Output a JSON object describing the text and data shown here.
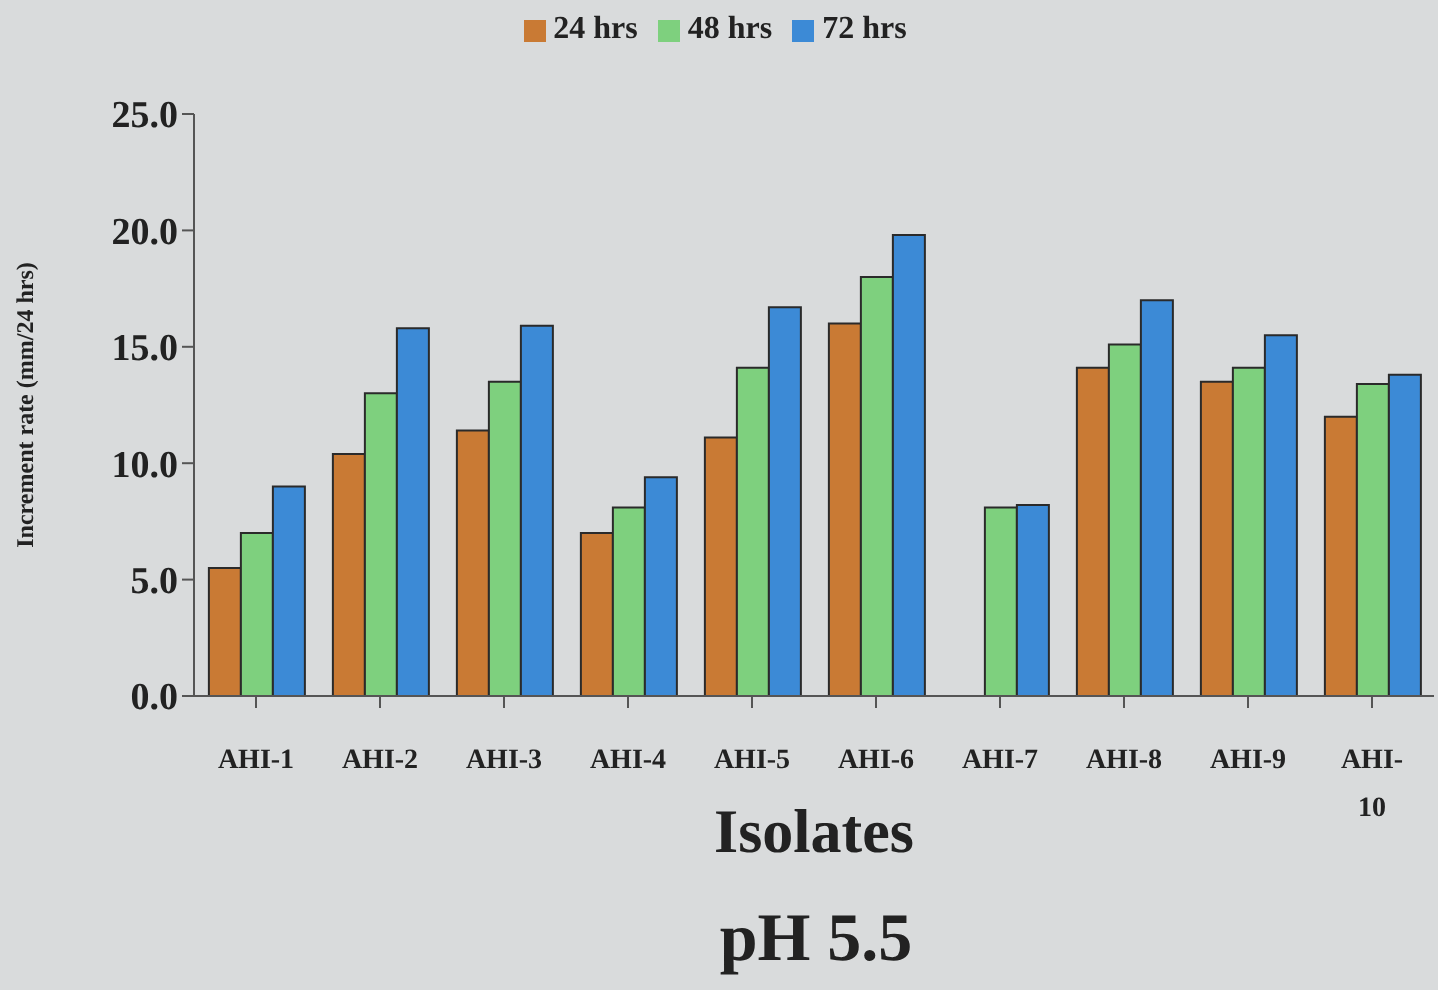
{
  "chart_data": {
    "type": "bar",
    "title": "pH 5.5",
    "xlabel": "Isolates",
    "ylabel": "Increment rate (mm/24 hrs)",
    "categories": [
      "AHI-1",
      "AHI-2",
      "AHI-3",
      "AHI-4",
      "AHI-5",
      "AHI-6",
      "AHI-7",
      "AHI-8",
      "AHI-9",
      "AHI-10"
    ],
    "series": [
      {
        "name": "24 hrs",
        "color": "#c97a34",
        "values": [
          5.5,
          10.4,
          11.4,
          7.0,
          11.1,
          16.0,
          null,
          14.1,
          13.5,
          12.0
        ]
      },
      {
        "name": "48 hrs",
        "color": "#7ed07e",
        "values": [
          7.0,
          13.0,
          13.5,
          8.1,
          14.1,
          18.0,
          8.1,
          15.1,
          14.1,
          13.4
        ]
      },
      {
        "name": "72 hrs",
        "color": "#3c8ad6",
        "values": [
          9.0,
          15.8,
          15.9,
          9.4,
          16.7,
          19.8,
          8.2,
          17.0,
          15.5,
          13.8
        ]
      }
    ],
    "ylim": [
      0,
      25
    ],
    "yticks": [
      {
        "value": 0,
        "label": "0.0"
      },
      {
        "value": 5,
        "label": "5.0"
      },
      {
        "value": 10,
        "label": "10.0"
      },
      {
        "value": 15,
        "label": "15.0"
      },
      {
        "value": 20,
        "label": "20.0"
      },
      {
        "value": 25,
        "label": "25.0"
      }
    ],
    "legend": "top"
  }
}
